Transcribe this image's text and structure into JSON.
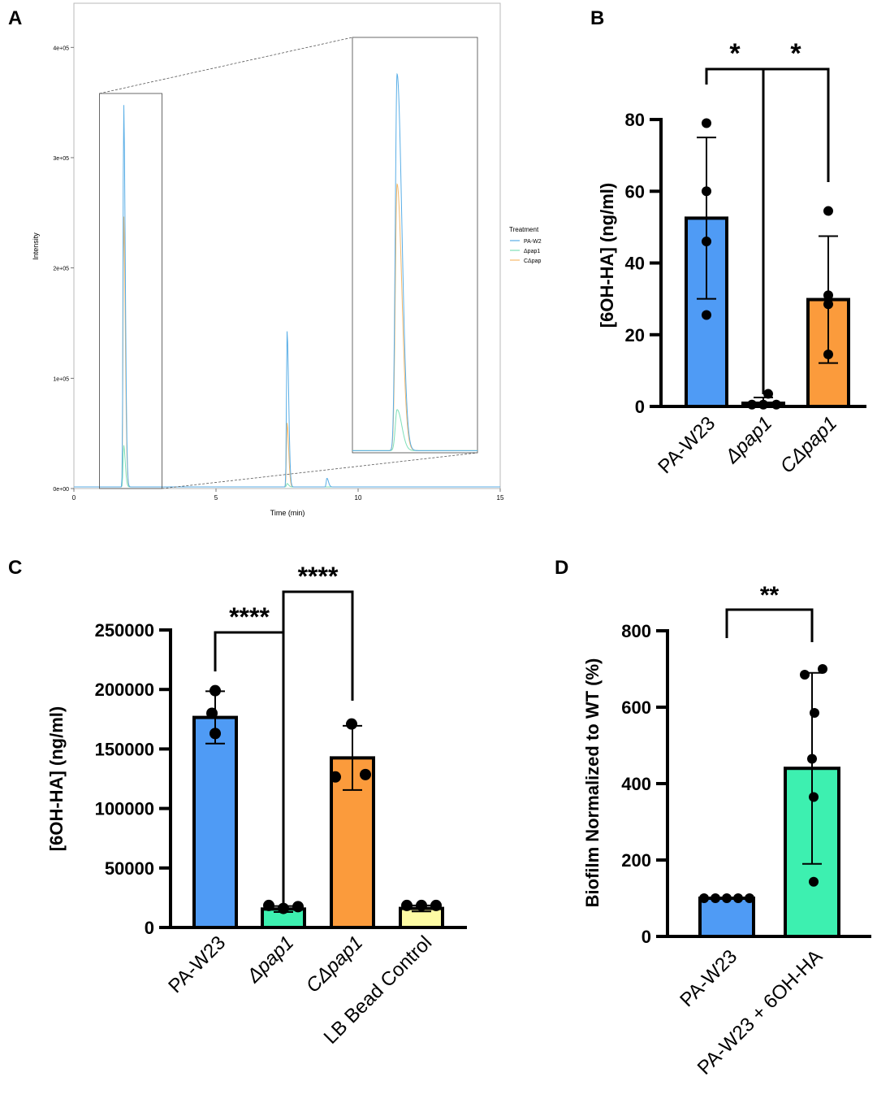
{
  "panels": {
    "a": "A",
    "b": "B",
    "c": "C",
    "d": "D"
  },
  "chart_data": [
    {
      "panel": "A",
      "type": "line",
      "xlabel": "Time (min)",
      "ylabel": "Intensity",
      "xlim": [
        0,
        15
      ],
      "ylim": [
        0,
        440000
      ],
      "x_ticks": [
        0,
        5,
        10,
        15
      ],
      "y_ticks": [
        0,
        100000,
        200000,
        300000,
        400000
      ],
      "y_tick_labels": [
        "0e+00",
        "1e+05",
        "2e+05",
        "3e+05",
        "4e+05"
      ],
      "legend": {
        "title": "Treatment",
        "position": "right",
        "entries": [
          "PA-W2",
          "Δpap1",
          "CΔpap"
        ]
      },
      "grid": false,
      "series": [
        {
          "name": "PA-W2",
          "color": "#5aaee6",
          "peaks": [
            [
              1.75,
              349000
            ],
            [
              7.5,
              141000
            ],
            [
              8.9,
              8000
            ]
          ]
        },
        {
          "name": "Δpap1",
          "color": "#7ee0b8",
          "peaks": [
            [
              1.75,
              38000
            ],
            [
              7.5,
              3000
            ]
          ]
        },
        {
          "name": "CΔpap",
          "color": "#f6b96a",
          "peaks": [
            [
              1.75,
              247000
            ],
            [
              7.5,
              58000
            ]
          ]
        }
      ],
      "inset": {
        "source_xlim": [
          0.9,
          3.1
        ],
        "peaks": [
          {
            "name": "PA-W2",
            "value": 349000
          },
          {
            "name": "CΔpap",
            "value": 247000
          },
          {
            "name": "Δpap1",
            "value": 38000
          }
        ]
      }
    },
    {
      "panel": "B",
      "type": "bar",
      "ylabel": "[6OH-HA] (ng/ml)",
      "ylim": [
        0,
        85
      ],
      "y_ticks": [
        0,
        20,
        40,
        60,
        80
      ],
      "categories": [
        "PA-W23",
        "Δpap1",
        "CΔpap1"
      ],
      "category_italic": [
        false,
        true,
        true
      ],
      "values": [
        52.5,
        0.9,
        29.8
      ],
      "error": [
        22.5,
        1.6,
        17.7
      ],
      "colors": [
        "#4f9bf5",
        "#3df0b0",
        "#fb9b3c"
      ],
      "points": [
        [
          79,
          60,
          46,
          25.5
        ],
        [
          3.5,
          0.5,
          0.5,
          0.5
        ],
        [
          54.5,
          31,
          28.5,
          14.5
        ]
      ],
      "significance": [
        {
          "from": 0,
          "to": 1,
          "label": "*"
        },
        {
          "from": 1,
          "to": 2,
          "label": "*"
        }
      ]
    },
    {
      "panel": "C",
      "type": "bar",
      "ylabel": "[6OH-HA] (ng/ml)",
      "ylim": [
        0,
        260000
      ],
      "y_ticks": [
        0,
        50000,
        100000,
        150000,
        200000,
        250000
      ],
      "categories": [
        "PA-W23",
        "Δpap1",
        "CΔpap1",
        "LB Bead Control"
      ],
      "category_italic": [
        false,
        true,
        true,
        false
      ],
      "values": [
        176500,
        15500,
        142500,
        16000
      ],
      "error": [
        22000,
        2500,
        27000,
        2500
      ],
      "colors": [
        "#4f9bf5",
        "#3df0b0",
        "#fb9b3c",
        "#fdfba4"
      ],
      "points": [
        [
          199000,
          180000,
          163000
        ],
        [
          18500,
          16000,
          17500
        ],
        [
          171000,
          126500,
          128500
        ],
        [
          18500,
          18500,
          18500
        ]
      ],
      "significance": [
        {
          "from": 0,
          "to": 1,
          "label": "****"
        },
        {
          "from": 1,
          "to": 2,
          "label": "****"
        }
      ]
    },
    {
      "panel": "D",
      "type": "bar",
      "ylabel": "Biofilm Normalized to  WT (%)",
      "ylim": [
        0,
        800
      ],
      "y_ticks": [
        0,
        200,
        400,
        600,
        800
      ],
      "categories": [
        "PA-W23",
        "PA-W23 + 6OH-HA"
      ],
      "category_italic": [
        false,
        false
      ],
      "values": [
        100,
        440
      ],
      "error": [
        0,
        250
      ],
      "colors": [
        "#4f9bf5",
        "#3df0b0"
      ],
      "points": [
        [
          100,
          100,
          100,
          100,
          100
        ],
        [
          700,
          685,
          585,
          465,
          365,
          143
        ]
      ],
      "significance": [
        {
          "from": 0,
          "to": 1,
          "label": "**"
        }
      ]
    }
  ]
}
